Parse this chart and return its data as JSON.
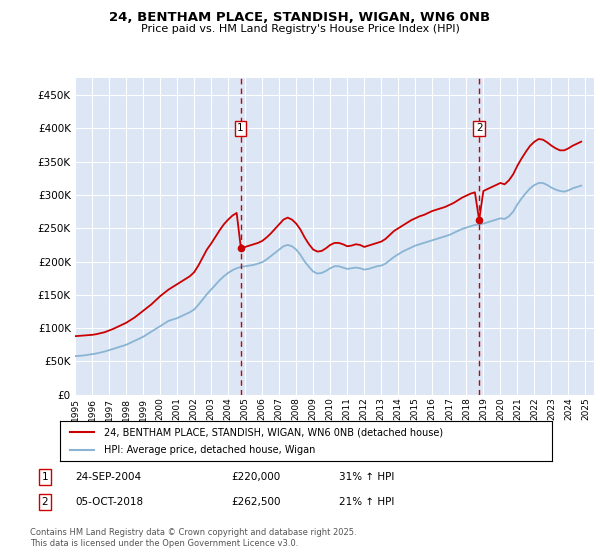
{
  "title_line1": "24, BENTHAM PLACE, STANDISH, WIGAN, WN6 0NB",
  "title_line2": "Price paid vs. HM Land Registry's House Price Index (HPI)",
  "ytick_values": [
    0,
    50000,
    100000,
    150000,
    200000,
    250000,
    300000,
    350000,
    400000,
    450000
  ],
  "ylim": [
    0,
    475000
  ],
  "xlim_start": 1995.0,
  "xlim_end": 2025.5,
  "plot_bg_color": "#dce6f5",
  "grid_color": "#ffffff",
  "red_line_color": "#cc0000",
  "blue_line_color": "#8ab4d4",
  "sale1_x": 2004.73,
  "sale1_y": 220000,
  "sale2_x": 2018.76,
  "sale2_y": 262500,
  "vline_color": "#cc0000",
  "marker_box_color": "#cc0000",
  "legend_label_red": "24, BENTHAM PLACE, STANDISH, WIGAN, WN6 0NB (detached house)",
  "legend_label_blue": "HPI: Average price, detached house, Wigan",
  "footnote": "Contains HM Land Registry data © Crown copyright and database right 2025.\nThis data is licensed under the Open Government Licence v3.0.",
  "table_row1": [
    "1",
    "24-SEP-2004",
    "£220,000",
    "31% ↑ HPI"
  ],
  "table_row2": [
    "2",
    "05-OCT-2018",
    "£262,500",
    "21% ↑ HPI"
  ],
  "hpi_data_x": [
    1995.0,
    1995.25,
    1995.5,
    1995.75,
    1996.0,
    1996.25,
    1996.5,
    1996.75,
    1997.0,
    1997.25,
    1997.5,
    1997.75,
    1998.0,
    1998.25,
    1998.5,
    1998.75,
    1999.0,
    1999.25,
    1999.5,
    1999.75,
    2000.0,
    2000.25,
    2000.5,
    2000.75,
    2001.0,
    2001.25,
    2001.5,
    2001.75,
    2002.0,
    2002.25,
    2002.5,
    2002.75,
    2003.0,
    2003.25,
    2003.5,
    2003.75,
    2004.0,
    2004.25,
    2004.5,
    2004.75,
    2005.0,
    2005.25,
    2005.5,
    2005.75,
    2006.0,
    2006.25,
    2006.5,
    2006.75,
    2007.0,
    2007.25,
    2007.5,
    2007.75,
    2008.0,
    2008.25,
    2008.5,
    2008.75,
    2009.0,
    2009.25,
    2009.5,
    2009.75,
    2010.0,
    2010.25,
    2010.5,
    2010.75,
    2011.0,
    2011.25,
    2011.5,
    2011.75,
    2012.0,
    2012.25,
    2012.5,
    2012.75,
    2013.0,
    2013.25,
    2013.5,
    2013.75,
    2014.0,
    2014.25,
    2014.5,
    2014.75,
    2015.0,
    2015.25,
    2015.5,
    2015.75,
    2016.0,
    2016.25,
    2016.5,
    2016.75,
    2017.0,
    2017.25,
    2017.5,
    2017.75,
    2018.0,
    2018.25,
    2018.5,
    2018.75,
    2019.0,
    2019.25,
    2019.5,
    2019.75,
    2020.0,
    2020.25,
    2020.5,
    2020.75,
    2021.0,
    2021.25,
    2021.5,
    2021.75,
    2022.0,
    2022.25,
    2022.5,
    2022.75,
    2023.0,
    2023.25,
    2023.5,
    2023.75,
    2024.0,
    2024.25,
    2024.5,
    2024.75
  ],
  "hpi_data_y": [
    58000,
    58500,
    59000,
    60000,
    61000,
    62000,
    63500,
    65000,
    67000,
    69000,
    71000,
    73000,
    75000,
    78000,
    81000,
    84000,
    87000,
    91000,
    95000,
    99000,
    103000,
    107000,
    111000,
    113000,
    115000,
    118000,
    121000,
    124000,
    128000,
    135000,
    143000,
    151000,
    158000,
    165000,
    172000,
    178000,
    183000,
    187000,
    190000,
    192000,
    193000,
    194000,
    195000,
    197000,
    199000,
    203000,
    208000,
    213000,
    218000,
    223000,
    225000,
    223000,
    218000,
    210000,
    200000,
    192000,
    185000,
    182000,
    183000,
    186000,
    190000,
    193000,
    193000,
    191000,
    189000,
    190000,
    191000,
    190000,
    188000,
    189000,
    191000,
    193000,
    194000,
    197000,
    202000,
    207000,
    211000,
    215000,
    218000,
    221000,
    224000,
    226000,
    228000,
    230000,
    232000,
    234000,
    236000,
    238000,
    240000,
    243000,
    246000,
    249000,
    251000,
    253000,
    255000,
    256000,
    257000,
    259000,
    261000,
    263000,
    265000,
    264000,
    268000,
    275000,
    286000,
    295000,
    303000,
    310000,
    315000,
    318000,
    318000,
    315000,
    311000,
    308000,
    306000,
    305000,
    307000,
    310000,
    312000,
    314000
  ],
  "red_data_x": [
    1995.0,
    1995.25,
    1995.5,
    1995.75,
    1996.0,
    1996.25,
    1996.5,
    1996.75,
    1997.0,
    1997.25,
    1997.5,
    1997.75,
    1998.0,
    1998.25,
    1998.5,
    1998.75,
    1999.0,
    1999.25,
    1999.5,
    1999.75,
    2000.0,
    2000.25,
    2000.5,
    2000.75,
    2001.0,
    2001.25,
    2001.5,
    2001.75,
    2002.0,
    2002.25,
    2002.5,
    2002.75,
    2003.0,
    2003.25,
    2003.5,
    2003.75,
    2004.0,
    2004.25,
    2004.5,
    2004.75,
    2005.0,
    2005.25,
    2005.5,
    2005.75,
    2006.0,
    2006.25,
    2006.5,
    2006.75,
    2007.0,
    2007.25,
    2007.5,
    2007.75,
    2008.0,
    2008.25,
    2008.5,
    2008.75,
    2009.0,
    2009.25,
    2009.5,
    2009.75,
    2010.0,
    2010.25,
    2010.5,
    2010.75,
    2011.0,
    2011.25,
    2011.5,
    2011.75,
    2012.0,
    2012.25,
    2012.5,
    2012.75,
    2013.0,
    2013.25,
    2013.5,
    2013.75,
    2014.0,
    2014.25,
    2014.5,
    2014.75,
    2015.0,
    2015.25,
    2015.5,
    2015.75,
    2016.0,
    2016.25,
    2016.5,
    2016.75,
    2017.0,
    2017.25,
    2017.5,
    2017.75,
    2018.0,
    2018.25,
    2018.5,
    2018.75,
    2019.0,
    2019.25,
    2019.5,
    2019.75,
    2020.0,
    2020.25,
    2020.5,
    2020.75,
    2021.0,
    2021.25,
    2021.5,
    2021.75,
    2022.0,
    2022.25,
    2022.5,
    2022.75,
    2023.0,
    2023.25,
    2023.5,
    2023.75,
    2024.0,
    2024.25,
    2024.5,
    2024.75
  ],
  "red_data_y": [
    88000,
    88500,
    89000,
    89500,
    90000,
    91000,
    92500,
    94000,
    96500,
    99000,
    102000,
    105000,
    108000,
    112000,
    116000,
    121000,
    126000,
    131000,
    136000,
    142000,
    148000,
    153000,
    158000,
    162000,
    166000,
    170000,
    174000,
    178000,
    184000,
    194000,
    206000,
    218000,
    227000,
    237000,
    247000,
    256000,
    263000,
    269000,
    273000,
    220000,
    222000,
    224000,
    226000,
    228000,
    231000,
    236000,
    242000,
    249000,
    256000,
    263000,
    266000,
    263000,
    257000,
    248000,
    236000,
    226000,
    218000,
    215000,
    216000,
    220000,
    225000,
    228000,
    228000,
    226000,
    223000,
    224000,
    226000,
    225000,
    222000,
    224000,
    226000,
    228000,
    230000,
    234000,
    240000,
    246000,
    250000,
    254000,
    258000,
    262000,
    265000,
    268000,
    270000,
    273000,
    276000,
    278000,
    280000,
    282000,
    285000,
    288000,
    292000,
    296000,
    299000,
    302000,
    304000,
    262500,
    306000,
    309000,
    312000,
    315000,
    318000,
    316000,
    322000,
    331000,
    344000,
    355000,
    365000,
    374000,
    380000,
    384000,
    383000,
    379000,
    374000,
    370000,
    367000,
    367000,
    370000,
    374000,
    377000,
    380000
  ]
}
